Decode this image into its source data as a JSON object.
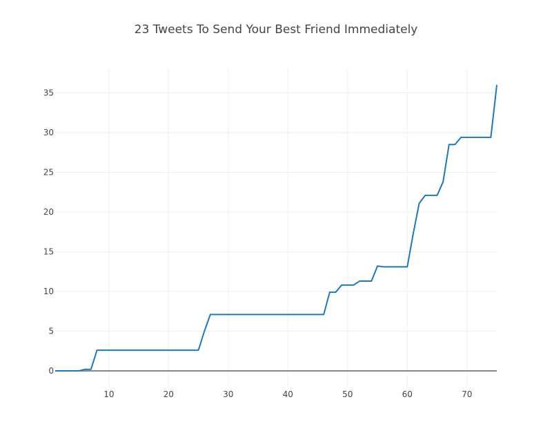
{
  "chart_data": {
    "type": "line",
    "title": "23 Tweets To Send Your Best Friend Immediately",
    "xlabel": "",
    "ylabel": "",
    "xlim": [
      1,
      75
    ],
    "ylim": [
      -2,
      38
    ],
    "x_ticks": [
      10,
      20,
      30,
      40,
      50,
      60,
      70
    ],
    "y_ticks": [
      0,
      5,
      10,
      15,
      20,
      25,
      30,
      35
    ],
    "grid": true,
    "line_color": "#1f77b4",
    "zero_line_color": "#888888",
    "grid_color": "#eeeeee",
    "series": [
      {
        "x": [
          1,
          2,
          3,
          4,
          5,
          6,
          7,
          8,
          9,
          10,
          11,
          12,
          13,
          14,
          15,
          16,
          17,
          18,
          19,
          20,
          21,
          22,
          23,
          24,
          25,
          26,
          27,
          28,
          29,
          30,
          31,
          32,
          33,
          34,
          35,
          36,
          37,
          38,
          39,
          40,
          41,
          42,
          43,
          44,
          45,
          46,
          47,
          48,
          49,
          50,
          51,
          52,
          53,
          54,
          55,
          56,
          57,
          58,
          59,
          60,
          61,
          62,
          63,
          64,
          65,
          66,
          67,
          68,
          69,
          70,
          71,
          72,
          73,
          74,
          75
        ],
        "values": [
          0,
          0,
          0,
          0,
          0,
          0.2,
          0.2,
          2.6,
          2.6,
          2.6,
          2.6,
          2.6,
          2.6,
          2.6,
          2.6,
          2.6,
          2.6,
          2.6,
          2.6,
          2.6,
          2.6,
          2.6,
          2.6,
          2.6,
          2.6,
          5,
          7.1,
          7.1,
          7.1,
          7.1,
          7.1,
          7.1,
          7.1,
          7.1,
          7.1,
          7.1,
          7.1,
          7.1,
          7.1,
          7.1,
          7.1,
          7.1,
          7.1,
          7.1,
          7.1,
          7.1,
          9.9,
          9.9,
          10.8,
          10.8,
          10.8,
          11.3,
          11.3,
          11.3,
          13.2,
          13.1,
          13.1,
          13.1,
          13.1,
          13.1,
          17.3,
          21.1,
          22.1,
          22.1,
          22.1,
          23.8,
          28.5,
          28.5,
          29.4,
          29.4,
          29.4,
          29.4,
          29.4,
          29.4,
          36
        ]
      }
    ]
  }
}
